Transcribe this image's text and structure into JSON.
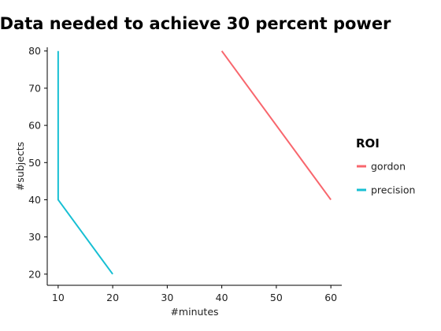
{
  "chart_data": {
    "type": "line",
    "title": "Data needed to achieve 30 percent power",
    "xlabel": "#minutes",
    "ylabel": "#subjects",
    "xlim": [
      8,
      62
    ],
    "ylim": [
      17,
      81
    ],
    "xticks": [
      10,
      20,
      30,
      40,
      50,
      60
    ],
    "yticks": [
      20,
      30,
      40,
      50,
      60,
      70,
      80
    ],
    "grid": false,
    "legend": {
      "title": "ROI",
      "position": "right"
    },
    "series": [
      {
        "name": "gordon",
        "color": "#f8666d",
        "points": [
          {
            "x": 40,
            "y": 80
          },
          {
            "x": 60,
            "y": 40
          }
        ]
      },
      {
        "name": "precision",
        "color": "#17bfd3",
        "points": [
          {
            "x": 10,
            "y": 80
          },
          {
            "x": 10,
            "y": 40
          },
          {
            "x": 20,
            "y": 20
          }
        ]
      }
    ]
  }
}
